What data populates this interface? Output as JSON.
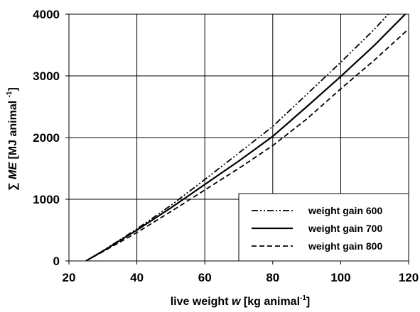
{
  "chart_data": {
    "type": "line",
    "xlabel": {
      "prefix": "live weight ",
      "var": "w",
      "unit_open": " [kg animal",
      "unit_sup": "-1",
      "unit_close": "]"
    },
    "ylabel": {
      "sum": "∑ ",
      "var": "ME",
      "unit_open": " [MJ animal ",
      "unit_sup": "-1",
      "unit_close": "]"
    },
    "xlim": [
      20,
      120
    ],
    "ylim": [
      0,
      4000
    ],
    "xticks": [
      "20",
      "40",
      "60",
      "80",
      "100",
      "120"
    ],
    "yticks": [
      "0",
      "1000",
      "2000",
      "3000",
      "4000"
    ],
    "grid": true,
    "legend_position": "bottom-right",
    "series": [
      {
        "name": "weight gain 600",
        "style": "dash-dot-dot",
        "color": "#000000",
        "x": [
          25,
          30,
          40,
          50,
          60,
          70,
          80,
          90,
          100,
          110,
          114
        ],
        "y": [
          0,
          165,
          520,
          900,
          1320,
          1750,
          2180,
          2700,
          3220,
          3760,
          4000
        ]
      },
      {
        "name": "weight gain 700",
        "style": "solid",
        "color": "#000000",
        "x": [
          25,
          30,
          40,
          50,
          60,
          70,
          80,
          90,
          100,
          110,
          119
        ],
        "y": [
          0,
          160,
          500,
          860,
          1240,
          1620,
          2020,
          2500,
          2990,
          3500,
          4000
        ]
      },
      {
        "name": "weight gain 800",
        "style": "dashed",
        "color": "#000000",
        "x": [
          25,
          30,
          40,
          50,
          60,
          70,
          80,
          90,
          100,
          110,
          120
        ],
        "y": [
          0,
          150,
          460,
          800,
          1150,
          1500,
          1870,
          2300,
          2790,
          3260,
          3760
        ]
      }
    ]
  }
}
